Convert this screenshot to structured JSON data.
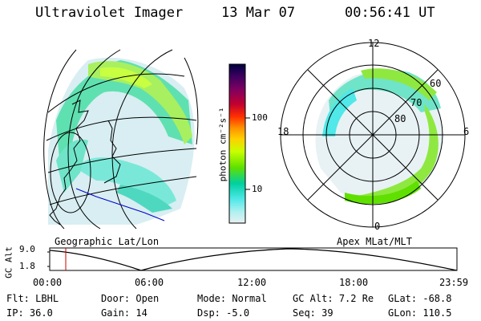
{
  "header": {
    "instrument": "Ultraviolet Imager",
    "date": "13 Mar 07",
    "time": "00:56:41 UT"
  },
  "left_panel": {
    "label": "Geographic Lat/Lon"
  },
  "right_panel": {
    "label": "Apex MLat/MLT",
    "mlt_labels": {
      "top": "12",
      "left": "18",
      "right": "6",
      "bottom": "0"
    },
    "lat_labels": [
      "60",
      "70",
      "80"
    ]
  },
  "colorbar": {
    "unit_label": "photon cm⁻²s⁻¹",
    "ticks": [
      "100",
      "10"
    ],
    "colors": [
      "#000040",
      "#400060",
      "#800060",
      "#c00030",
      "#ff3000",
      "#ff9000",
      "#ffd000",
      "#c8ff00",
      "#60e000",
      "#00d0a0",
      "#50e8e8",
      "#b0f0f0",
      "#e8f0f0"
    ]
  },
  "timeline": {
    "ylabel": "GC Alt",
    "yticks": [
      "9.0",
      "1.8"
    ],
    "xticks": [
      "00:00",
      "06:00",
      "12:00",
      "18:00",
      "23:59"
    ],
    "current_time_hours": 0.945,
    "marker_color": "#cc0000"
  },
  "status": {
    "row1": [
      {
        "label": "Flt:",
        "value": "LBHL"
      },
      {
        "label": "Door:",
        "value": "Open"
      },
      {
        "label": "Mode:",
        "value": "Normal"
      },
      {
        "label": "GC Alt:",
        "value": "7.2 Re"
      },
      {
        "label": "GLat:",
        "value": "-68.8"
      }
    ],
    "row2": [
      {
        "label": "IP:",
        "value": "36.0"
      },
      {
        "label": "Gain:",
        "value": "14"
      },
      {
        "label": "Dsp:",
        "value": "-5.0"
      },
      {
        "label": "Seq:",
        "value": "39"
      },
      {
        "label": "GLon:",
        "value": "110.5"
      }
    ]
  }
}
